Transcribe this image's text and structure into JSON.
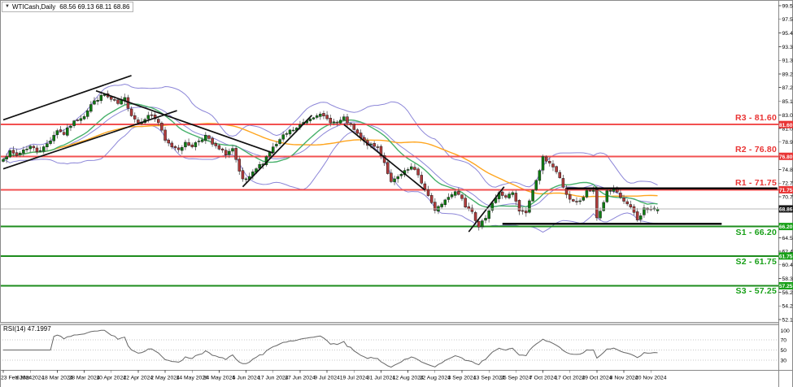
{
  "title": {
    "symbol_period": "WTICash,Daily",
    "ohlc": "68.56 69.13 68.11 68.86"
  },
  "colors": {
    "background": "#ffffff",
    "frame": "#8a8a8a",
    "bull": "#0e7d12",
    "bear": "#b13b3b",
    "wick": "#555555",
    "candle_border": "#1c1c1c",
    "bollinger": "#8c86d8",
    "ma_fast": "#46b06a",
    "ma_slow": "#ffa51e",
    "resistance": "#f25050",
    "support": "#1e8c1e",
    "trend": "#111111",
    "price_line": "#b9b9b9",
    "current_badge": "#1a1a1a",
    "badge_resistance": "#e93434",
    "badge_support": "#18a018",
    "axis_text": "#000000",
    "rsi_line": "#666666",
    "rsi_guide": "#b5b5b5"
  },
  "chart_data": {
    "type": "candlestick",
    "symbol": "WTICash",
    "timeframe": "Daily",
    "last_candle": {
      "open": 68.56,
      "high": 69.13,
      "low": 68.11,
      "close": 68.86
    },
    "current_price": 68.86,
    "levels": [
      {
        "id": "R3",
        "label": "R3 - 81.60",
        "value": 81.6,
        "type": "resistance"
      },
      {
        "id": "R2",
        "label": "R2 - 76.80",
        "value": 76.8,
        "type": "resistance"
      },
      {
        "id": "R1",
        "label": "R1 - 71.75",
        "value": 71.75,
        "type": "resistance"
      },
      {
        "id": "S1",
        "label": "S1 - 66.20",
        "value": 66.2,
        "type": "support"
      },
      {
        "id": "S2",
        "label": "S2 - 61.75",
        "value": 61.75,
        "type": "support"
      },
      {
        "id": "S3",
        "label": "S3 - 57.25",
        "value": 57.25,
        "type": "support"
      }
    ],
    "y_axis_ticks": [
      99.55,
      97.5,
      95.45,
      93.35,
      91.3,
      89.25,
      87.2,
      85.1,
      83.05,
      81.0,
      78.95,
      74.8,
      72.75,
      70.7,
      64.5,
      62.45,
      60.4,
      58.35,
      56.25,
      54.2,
      52.15
    ],
    "x_axis_labels": [
      "23 Feb 2024",
      "6 Mar 2024",
      "18 Mar 2024",
      "28 Mar 2024",
      "10 Apr 2024",
      "22 Apr 2024",
      "2 May 2024",
      "14 May 2024",
      "24 May 2024",
      "5 Jun 2024",
      "17 Jun 2024",
      "27 Jun 2024",
      "9 Jul 2024",
      "19 Jul 2024",
      "31 Jul 2024",
      "12 Aug 2024",
      "22 Aug 2024",
      "3 Sep 2024",
      "13 Sep 2024",
      "25 Sep 2024",
      "7 Oct 2024",
      "17 Oct 2024",
      "29 Oct 2024",
      "8 Nov 2024",
      "20 Nov 2024"
    ],
    "price_anchors": [
      [
        0,
        76.6
      ],
      [
        2,
        77.4
      ],
      [
        4,
        76.9
      ],
      [
        6,
        77.8
      ],
      [
        8,
        78.3
      ],
      [
        10,
        77.6
      ],
      [
        12,
        78.1
      ],
      [
        14,
        79.3
      ],
      [
        16,
        80.8
      ],
      [
        18,
        80.2
      ],
      [
        20,
        81.5
      ],
      [
        22,
        82.4
      ],
      [
        24,
        83.0
      ],
      [
        26,
        84.6
      ],
      [
        28,
        85.5
      ],
      [
        30,
        86.1
      ],
      [
        32,
        85.3
      ],
      [
        34,
        84.7
      ],
      [
        36,
        85.5
      ],
      [
        38,
        83.1
      ],
      [
        40,
        81.9
      ],
      [
        42,
        82.6
      ],
      [
        44,
        83.1
      ],
      [
        46,
        81.9
      ],
      [
        48,
        79.1
      ],
      [
        50,
        78.3
      ],
      [
        52,
        78.0
      ],
      [
        54,
        78.7
      ],
      [
        56,
        78.4
      ],
      [
        58,
        79.2
      ],
      [
        60,
        79.9
      ],
      [
        62,
        78.6
      ],
      [
        64,
        77.8
      ],
      [
        66,
        77.2
      ],
      [
        68,
        77.9
      ],
      [
        70,
        74.3
      ],
      [
        71,
        73.2
      ],
      [
        73,
        73.5
      ],
      [
        75,
        74.9
      ],
      [
        77,
        75.9
      ],
      [
        79,
        77.6
      ],
      [
        81,
        78.6
      ],
      [
        83,
        79.8
      ],
      [
        85,
        80.6
      ],
      [
        87,
        81.0
      ],
      [
        89,
        81.9
      ],
      [
        91,
        82.6
      ],
      [
        93,
        83.2
      ],
      [
        95,
        82.7
      ],
      [
        97,
        82.1
      ],
      [
        99,
        81.8
      ],
      [
        101,
        82.5
      ],
      [
        103,
        81.4
      ],
      [
        105,
        80.1
      ],
      [
        107,
        78.9
      ],
      [
        109,
        78.4
      ],
      [
        111,
        78.2
      ],
      [
        113,
        75.9
      ],
      [
        115,
        72.8
      ],
      [
        117,
        73.6
      ],
      [
        119,
        74.4
      ],
      [
        121,
        75.1
      ],
      [
        123,
        74.0
      ],
      [
        125,
        71.8
      ],
      [
        127,
        69.6
      ],
      [
        128,
        68.8
      ],
      [
        130,
        69.6
      ],
      [
        132,
        70.8
      ],
      [
        134,
        71.5
      ],
      [
        136,
        70.6
      ],
      [
        137,
        69.4
      ],
      [
        139,
        68.7
      ],
      [
        141,
        65.9
      ],
      [
        143,
        67.7
      ],
      [
        145,
        69.8
      ],
      [
        147,
        71.2
      ],
      [
        149,
        70.7
      ],
      [
        151,
        71.2
      ],
      [
        153,
        68.5
      ],
      [
        155,
        68.3
      ],
      [
        157,
        71.8
      ],
      [
        159,
        74.5
      ],
      [
        160,
        77.0
      ],
      [
        161,
        76.2
      ],
      [
        163,
        75.0
      ],
      [
        165,
        73.6
      ],
      [
        167,
        70.8
      ],
      [
        169,
        70.1
      ],
      [
        171,
        69.9
      ],
      [
        173,
        71.4
      ],
      [
        175,
        71.7
      ],
      [
        176,
        67.6
      ],
      [
        177,
        68.5
      ],
      [
        179,
        71.4
      ],
      [
        181,
        71.8
      ],
      [
        183,
        70.6
      ],
      [
        185,
        69.5
      ],
      [
        187,
        68.3
      ],
      [
        188,
        67.1
      ],
      [
        190,
        68.9
      ],
      [
        192,
        68.7
      ],
      [
        194,
        68.86
      ]
    ],
    "trend_lines": [
      {
        "from": [
          0,
          82.3
        ],
        "to": [
          38,
          89.0
        ]
      },
      {
        "from": [
          0,
          74.9
        ],
        "to": [
          51.5,
          83.7
        ]
      },
      {
        "from": [
          27.5,
          86.7
        ],
        "to": [
          80,
          77.3
        ]
      },
      {
        "from": [
          71,
          72.2
        ],
        "to": [
          91.5,
          83.0
        ]
      },
      {
        "from": [
          101,
          81.6
        ],
        "to": [
          125,
          71.7
        ]
      },
      {
        "from": [
          138,
          65.4
        ],
        "to": [
          148.5,
          72.2
        ]
      }
    ],
    "horizontal_segments": [
      {
        "value": 71.95,
        "from_day": 167,
        "to_day": 229.5
      },
      {
        "value": 66.6,
        "from_day": 148,
        "to_day": 213
      }
    ],
    "indicators": {
      "bollinger": {
        "period": 20,
        "deviation": 2
      },
      "ma_fast": {
        "period": 16
      },
      "ma_slow": {
        "period": 48
      },
      "rsi": {
        "label": "RSI(14) 47.1997",
        "period": 14,
        "value": 47.1997,
        "scale_labels": [
          100,
          70,
          50,
          30
        ],
        "guides": [
          70,
          50,
          30
        ]
      }
    }
  }
}
